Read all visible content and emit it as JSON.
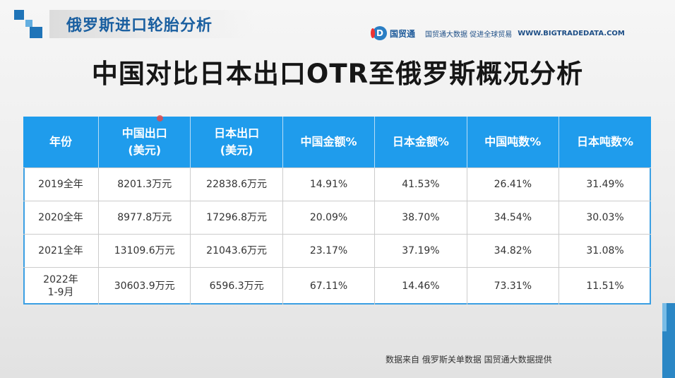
{
  "header": {
    "title": "俄罗斯进口轮胎分析",
    "brand_mark": "D",
    "brand_name": "国贸通",
    "brand_slogan": "国贸通大数据 促进全球贸易",
    "brand_url": "WWW.BIGTRADEDATA.COM"
  },
  "main_title": "中国对比日本出口OTR至俄罗斯概况分析",
  "table": {
    "columns": [
      {
        "line1": "年份",
        "line2": ""
      },
      {
        "line1": "中国出口",
        "line2": "(美元)"
      },
      {
        "line1": "日本出口",
        "line2": "(美元)"
      },
      {
        "line1": "中国金额%",
        "line2": ""
      },
      {
        "line1": "日本金额%",
        "line2": ""
      },
      {
        "line1": "中国吨数%",
        "line2": ""
      },
      {
        "line1": "日本吨数%",
        "line2": ""
      }
    ],
    "rows": [
      {
        "year": "2019全年",
        "year2": "",
        "china_export": "8201.3万元",
        "japan_export": "22838.6万元",
        "china_amount": "14.91%",
        "japan_amount": "41.53%",
        "china_tons": "26.41%",
        "japan_tons": "31.49%"
      },
      {
        "year": "2020全年",
        "year2": "",
        "china_export": "8977.8万元",
        "japan_export": "17296.8万元",
        "china_amount": "20.09%",
        "japan_amount": "38.70%",
        "china_tons": "34.54%",
        "japan_tons": "30.03%"
      },
      {
        "year": "2021全年",
        "year2": "",
        "china_export": "13109.6万元",
        "japan_export": "21043.6万元",
        "china_amount": "23.17%",
        "japan_amount": "37.19%",
        "china_tons": "34.82%",
        "japan_tons": "31.08%"
      },
      {
        "year": "2022年",
        "year2": "1-9月",
        "china_export": "30603.9万元",
        "japan_export": "6596.3万元",
        "china_amount": "67.11%",
        "japan_amount": "14.46%",
        "china_tons": "73.31%",
        "japan_tons": "11.51%"
      }
    ]
  },
  "source_note": "数据来自 俄罗斯关单数据 国贸通大数据提供",
  "colors": {
    "header_blue": "#1a5fa0",
    "table_header": "#1f9cec",
    "accent_bar": "#2b87c5"
  }
}
